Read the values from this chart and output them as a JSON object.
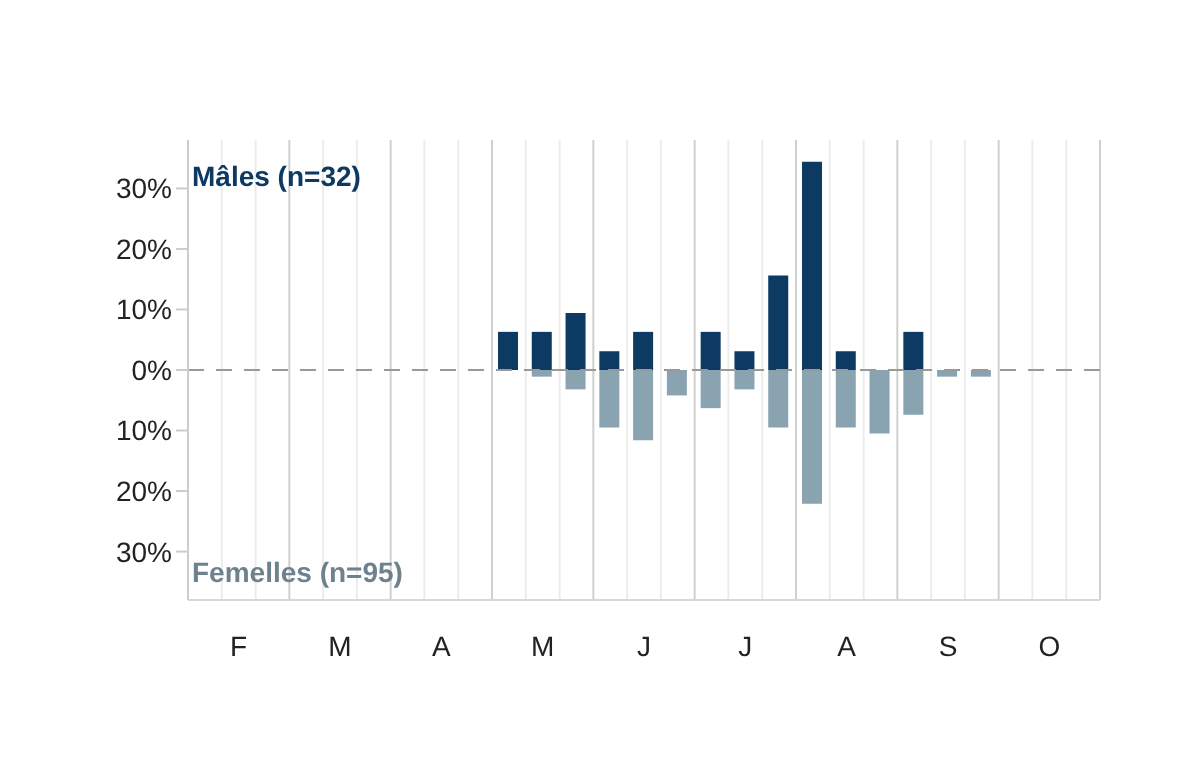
{
  "chart_data": {
    "type": "bar",
    "stacked": true,
    "categories": [
      null,
      "F",
      null,
      null,
      "M",
      null,
      null,
      "A",
      null,
      null,
      "M",
      null,
      null,
      "J",
      null,
      null,
      "J",
      null,
      null,
      "A",
      null,
      null,
      "S",
      null,
      null,
      "O",
      null
    ],
    "series": [
      {
        "name": "Mâles (n=32)",
        "color": "#0d3a63",
        "values": [
          0,
          0,
          0,
          0,
          0,
          0,
          0,
          0,
          0,
          6.3,
          6.3,
          9.4,
          3.1,
          6.3,
          0,
          6.3,
          3.1,
          15.6,
          34.4,
          3.1,
          0,
          6.3,
          0,
          0,
          0,
          0,
          0
        ]
      },
      {
        "name": "Femelles (n=95)",
        "color": "#8aa3b1",
        "values": [
          0,
          0,
          0,
          0,
          0,
          0,
          0,
          0,
          0,
          0,
          -1.1,
          -3.2,
          -9.5,
          -11.6,
          -4.2,
          -6.3,
          -3.2,
          -9.5,
          -22.1,
          -9.5,
          -10.5,
          -7.4,
          -1.1,
          -1.1,
          0,
          0,
          0
        ]
      }
    ],
    "ylim": [
      -38,
      38
    ],
    "yticks": [
      {
        "value": -30,
        "label": "30%"
      },
      {
        "value": -20,
        "label": "20%"
      },
      {
        "value": -10,
        "label": "10%"
      },
      {
        "value": 0,
        "label": "0%"
      },
      {
        "value": 10,
        "label": "10%"
      },
      {
        "value": 20,
        "label": "20%"
      },
      {
        "value": 30,
        "label": "30%"
      }
    ],
    "grid": "x",
    "ref_lines": [
      {
        "axis": "y",
        "value": 0,
        "color": "#999999",
        "line_style": "dashed"
      }
    ]
  }
}
